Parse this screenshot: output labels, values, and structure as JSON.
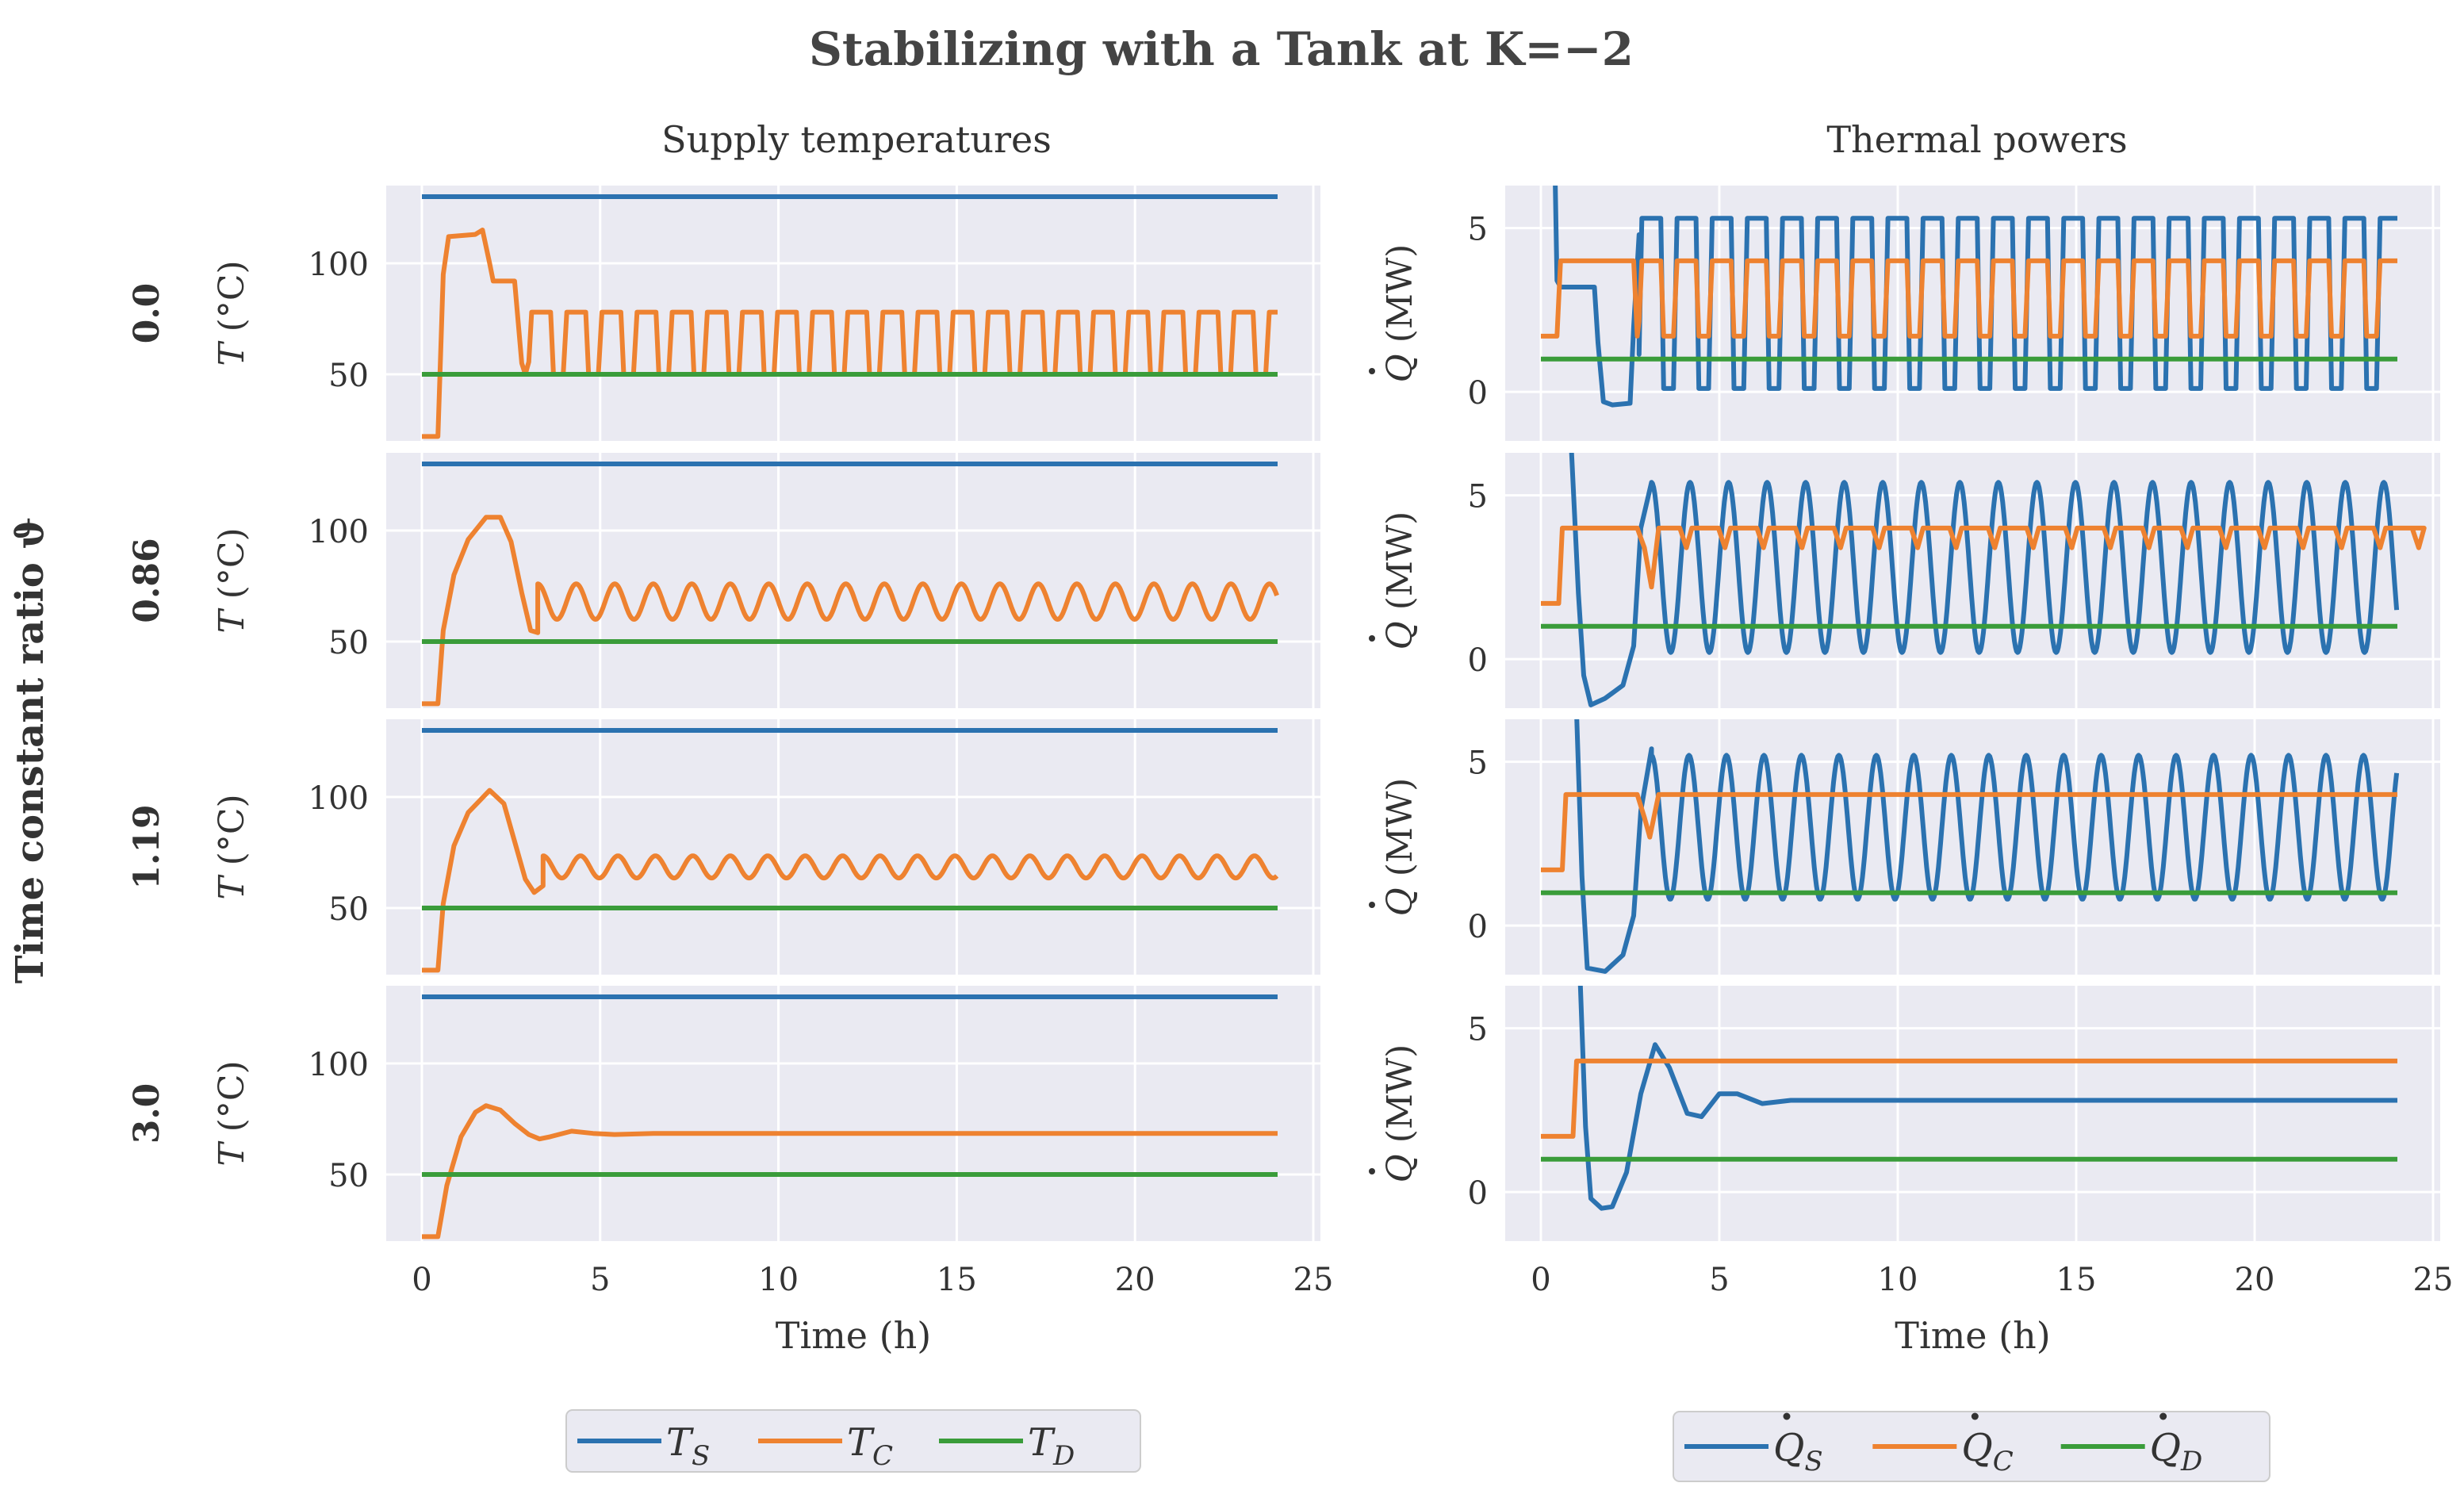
{
  "figure_title": "Stabilizing with a Tank at K=−2",
  "row_title": "Time constant ratio ϑ",
  "x_label": "Time (h)",
  "colors": {
    "supply": "#2b72b0",
    "consumer": "#ee8230",
    "demand": "#3a9c3a",
    "panel_bg": "#eaeaf2",
    "grid": "#ffffff"
  },
  "legend_left": [
    {
      "name": "T",
      "sub": "S",
      "color": "#2b72b0"
    },
    {
      "name": "T",
      "sub": "C",
      "color": "#ee8230"
    },
    {
      "name": "T",
      "sub": "D",
      "color": "#3a9c3a"
    }
  ],
  "legend_right": [
    {
      "name": "Q",
      "sub": "S",
      "dot": true,
      "color": "#2b72b0"
    },
    {
      "name": "Q",
      "sub": "C",
      "dot": true,
      "color": "#ee8230"
    },
    {
      "name": "Q",
      "sub": "D",
      "dot": true,
      "color": "#3a9c3a"
    }
  ],
  "chart_data": [
    {
      "type": "line",
      "title": "Supply temperatures",
      "xlabel": "Time (h)",
      "ylabel": "T (°C)",
      "xlim": [
        -1,
        25.2
      ],
      "ylim": [
        20,
        135
      ],
      "xticks": [
        0,
        5,
        10,
        15,
        20,
        25
      ],
      "yticks": [
        50,
        100
      ],
      "rows": [
        {
          "theta": "0.0",
          "series": [
            {
              "name": "T_S",
              "mode": "const",
              "value": 130
            },
            {
              "name": "T_C",
              "mode": "square",
              "pts": [
                [
                  0,
                  22
                ],
                [
                  0.45,
                  22
                ],
                [
                  0.6,
                  95
                ],
                [
                  0.75,
                  112
                ],
                [
                  1.5,
                  113
                ],
                [
                  1.7,
                  115
                ],
                [
                  1.9,
                  100
                ],
                [
                  2.0,
                  92
                ],
                [
                  2.6,
                  92
                ],
                [
                  2.8,
                  55
                ],
                [
                  2.9,
                  50
                ]
              ],
              "start": 3.0,
              "period": 0.985,
              "high": 78,
              "low": 50,
              "end": 24
            },
            {
              "name": "T_D",
              "mode": "const",
              "value": 50
            }
          ]
        },
        {
          "theta": "0.86",
          "series": [
            {
              "name": "T_S",
              "mode": "const",
              "value": 130
            },
            {
              "name": "T_C",
              "mode": "osc",
              "pts": [
                [
                  0,
                  22
                ],
                [
                  0.45,
                  22
                ],
                [
                  0.6,
                  55
                ],
                [
                  0.9,
                  80
                ],
                [
                  1.3,
                  96
                ],
                [
                  1.8,
                  106
                ],
                [
                  2.2,
                  106
                ],
                [
                  2.5,
                  95
                ],
                [
                  2.8,
                  72
                ],
                [
                  3.05,
                  55
                ],
                [
                  3.25,
                  54
                ]
              ],
              "start": 3.25,
              "period": 1.08,
              "center": 68,
              "amp": 8,
              "end": 24
            },
            {
              "name": "T_D",
              "mode": "const",
              "value": 50
            }
          ]
        },
        {
          "theta": "1.19",
          "series": [
            {
              "name": "T_S",
              "mode": "const",
              "value": 130
            },
            {
              "name": "T_C",
              "mode": "osc",
              "pts": [
                [
                  0,
                  22
                ],
                [
                  0.45,
                  22
                ],
                [
                  0.6,
                  52
                ],
                [
                  0.9,
                  78
                ],
                [
                  1.3,
                  93
                ],
                [
                  1.9,
                  103
                ],
                [
                  2.3,
                  97
                ],
                [
                  2.6,
                  80
                ],
                [
                  2.9,
                  63
                ],
                [
                  3.15,
                  57
                ],
                [
                  3.4,
                  60
                ]
              ],
              "start": 3.4,
              "period": 1.05,
              "center": 68.5,
              "amp": 5,
              "end": 24
            },
            {
              "name": "T_D",
              "mode": "const",
              "value": 50
            }
          ]
        },
        {
          "theta": "3.0",
          "series": [
            {
              "name": "T_S",
              "mode": "const",
              "value": 130
            },
            {
              "name": "T_C",
              "mode": "pts",
              "pts": [
                [
                  0,
                  22
                ],
                [
                  0.45,
                  22
                ],
                [
                  0.7,
                  45
                ],
                [
                  1.1,
                  67
                ],
                [
                  1.5,
                  78
                ],
                [
                  1.8,
                  81
                ],
                [
                  2.2,
                  79
                ],
                [
                  2.6,
                  73
                ],
                [
                  3.0,
                  68
                ],
                [
                  3.3,
                  66
                ],
                [
                  3.6,
                  67
                ],
                [
                  4.2,
                  69.5
                ],
                [
                  4.8,
                  68.5
                ],
                [
                  5.4,
                  68
                ],
                [
                  6.5,
                  68.5
                ],
                [
                  24,
                  68.5
                ]
              ]
            },
            {
              "name": "T_D",
              "mode": "const",
              "value": 50
            }
          ]
        }
      ]
    },
    {
      "type": "line",
      "title": "Thermal powers",
      "xlabel": "Time (h)",
      "ylabel": "Q (MW)",
      "xlim": [
        -1,
        25.2
      ],
      "ylim": [
        -1.5,
        6.3
      ],
      "xticks": [
        0,
        5,
        10,
        15,
        20,
        25
      ],
      "yticks": [
        0,
        5
      ],
      "rows": [
        {
          "theta": "0.0",
          "series": [
            {
              "name": "Q_S",
              "mode": "square",
              "pts": [
                [
                  0.4,
                  6.5
                ],
                [
                  0.45,
                  3.4
                ],
                [
                  0.55,
                  3.2
                ],
                [
                  1.5,
                  3.2
                ],
                [
                  1.6,
                  1.5
                ],
                [
                  1.75,
                  -0.3
                ],
                [
                  2.0,
                  -0.4
                ],
                [
                  2.5,
                  -0.35
                ],
                [
                  2.6,
                  2.0
                ],
                [
                  2.75,
                  4.8
                ]
              ],
              "start": 2.75,
              "period": 0.985,
              "high": 5.3,
              "low": 0.1,
              "end": 24
            },
            {
              "name": "Q_C",
              "mode": "square",
              "pts": [
                [
                  0,
                  1.7
                ],
                [
                  0.45,
                  1.7
                ],
                [
                  0.55,
                  4.0
                ],
                [
                  2.6,
                  4.0
                ],
                [
                  2.7,
                  1.7
                ]
              ],
              "start": 2.75,
              "period": 0.985,
              "high": 4.0,
              "low": 1.7,
              "end": 24
            },
            {
              "name": "Q_D",
              "mode": "const",
              "value": 1.0
            }
          ]
        },
        {
          "theta": "0.86",
          "series": [
            {
              "name": "Q_S",
              "mode": "osc",
              "pts": [
                [
                  0.85,
                  6.5
                ],
                [
                  1.05,
                  2.0
                ],
                [
                  1.2,
                  -0.5
                ],
                [
                  1.4,
                  -1.4
                ],
                [
                  1.8,
                  -1.2
                ],
                [
                  2.3,
                  -0.8
                ],
                [
                  2.6,
                  0.4
                ],
                [
                  2.8,
                  4.0
                ],
                [
                  3.1,
                  5.4
                ]
              ],
              "start": 3.1,
              "period": 1.08,
              "center": 2.8,
              "amp": 2.6,
              "end": 24
            },
            {
              "name": "Q_C",
              "mode": "dip",
              "pts": [
                [
                  0,
                  1.7
                ],
                [
                  0.5,
                  1.7
                ],
                [
                  0.6,
                  4.0
                ],
                [
                  2.7,
                  4.0
                ],
                [
                  2.9,
                  3.4
                ],
                [
                  3.1,
                  2.2
                ],
                [
                  3.3,
                  4.0
                ]
              ],
              "start": 3.3,
              "period": 1.08,
              "base": 4.0,
              "dipto": 3.4,
              "end": 24
            },
            {
              "name": "Q_D",
              "mode": "const",
              "value": 1.0
            }
          ]
        },
        {
          "theta": "1.19",
          "series": [
            {
              "name": "Q_S",
              "mode": "osc",
              "pts": [
                [
                  1.0,
                  6.5
                ],
                [
                  1.15,
                  1.5
                ],
                [
                  1.3,
                  -1.3
                ],
                [
                  1.8,
                  -1.4
                ],
                [
                  2.3,
                  -0.9
                ],
                [
                  2.6,
                  0.3
                ],
                [
                  2.8,
                  3.5
                ],
                [
                  3.1,
                  5.4
                ]
              ],
              "start": 3.1,
              "period": 1.05,
              "center": 3.0,
              "amp": 2.2,
              "end": 24
            },
            {
              "name": "Q_C",
              "mode": "pts",
              "pts": [
                [
                  0,
                  1.7
                ],
                [
                  0.6,
                  1.7
                ],
                [
                  0.7,
                  4.0
                ],
                [
                  2.7,
                  4.0
                ],
                [
                  2.9,
                  3.3
                ],
                [
                  3.05,
                  2.7
                ],
                [
                  3.3,
                  4.0
                ],
                [
                  24,
                  4.0
                ]
              ]
            },
            {
              "name": "Q_D",
              "mode": "const",
              "value": 1.0
            }
          ]
        },
        {
          "theta": "3.0",
          "series": [
            {
              "name": "Q_S",
              "mode": "pts",
              "pts": [
                [
                  1.1,
                  6.5
                ],
                [
                  1.25,
                  2.0
                ],
                [
                  1.4,
                  -0.2
                ],
                [
                  1.7,
                  -0.5
                ],
                [
                  2.0,
                  -0.45
                ],
                [
                  2.4,
                  0.6
                ],
                [
                  2.8,
                  3.0
                ],
                [
                  3.2,
                  4.5
                ],
                [
                  3.6,
                  3.8
                ],
                [
                  4.1,
                  2.4
                ],
                [
                  4.5,
                  2.3
                ],
                [
                  5.0,
                  3.0
                ],
                [
                  5.5,
                  3.0
                ],
                [
                  6.2,
                  2.7
                ],
                [
                  7.0,
                  2.8
                ],
                [
                  8.5,
                  2.8
                ],
                [
                  24,
                  2.8
                ]
              ]
            },
            {
              "name": "Q_C",
              "mode": "pts",
              "pts": [
                [
                  0,
                  1.7
                ],
                [
                  0.9,
                  1.7
                ],
                [
                  1.0,
                  4.0
                ],
                [
                  24,
                  4.0
                ]
              ]
            },
            {
              "name": "Q_D",
              "mode": "const",
              "value": 1.0
            }
          ]
        }
      ]
    }
  ]
}
